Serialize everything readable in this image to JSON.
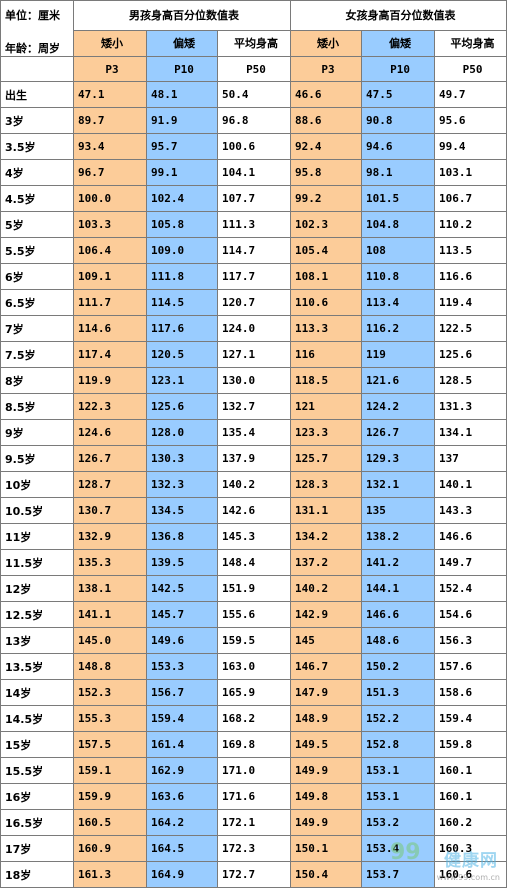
{
  "header": {
    "unit_label": "单位：厘米",
    "age_label": "年龄：周岁",
    "boys_title": "男孩身高百分位数值表",
    "girls_title": "女孩身高百分位数值表",
    "cols": [
      "矮小",
      "偏矮",
      "平均身高"
    ],
    "pcts": [
      "P3",
      "P10",
      "P50"
    ]
  },
  "rows": [
    {
      "age": "出生",
      "b": [
        "47.1",
        "48.1",
        "50.4"
      ],
      "g": [
        "46.6",
        "47.5",
        "49.7"
      ]
    },
    {
      "age": "3岁",
      "b": [
        "89.7",
        "91.9",
        "96.8"
      ],
      "g": [
        "88.6",
        "90.8",
        "95.6"
      ]
    },
    {
      "age": "3.5岁",
      "b": [
        "93.4",
        "95.7",
        "100.6"
      ],
      "g": [
        "92.4",
        "94.6",
        "99.4"
      ]
    },
    {
      "age": "4岁",
      "b": [
        "96.7",
        "99.1",
        "104.1"
      ],
      "g": [
        "95.8",
        "98.1",
        "103.1"
      ]
    },
    {
      "age": "4.5岁",
      "b": [
        "100.0",
        "102.4",
        "107.7"
      ],
      "g": [
        "99.2",
        "101.5",
        "106.7"
      ]
    },
    {
      "age": "5岁",
      "b": [
        "103.3",
        "105.8",
        "111.3"
      ],
      "g": [
        "102.3",
        "104.8",
        "110.2"
      ]
    },
    {
      "age": "5.5岁",
      "b": [
        "106.4",
        "109.0",
        "114.7"
      ],
      "g": [
        "105.4",
        "108",
        "113.5"
      ]
    },
    {
      "age": "6岁",
      "b": [
        "109.1",
        "111.8",
        "117.7"
      ],
      "g": [
        "108.1",
        "110.8",
        "116.6"
      ]
    },
    {
      "age": "6.5岁",
      "b": [
        "111.7",
        "114.5",
        "120.7"
      ],
      "g": [
        "110.6",
        "113.4",
        "119.4"
      ]
    },
    {
      "age": "7岁",
      "b": [
        "114.6",
        "117.6",
        "124.0"
      ],
      "g": [
        "113.3",
        "116.2",
        "122.5"
      ]
    },
    {
      "age": "7.5岁",
      "b": [
        "117.4",
        "120.5",
        "127.1"
      ],
      "g": [
        "116",
        "119",
        "125.6"
      ]
    },
    {
      "age": "8岁",
      "b": [
        "119.9",
        "123.1",
        "130.0"
      ],
      "g": [
        "118.5",
        "121.6",
        "128.5"
      ]
    },
    {
      "age": "8.5岁",
      "b": [
        "122.3",
        "125.6",
        "132.7"
      ],
      "g": [
        "121",
        "124.2",
        "131.3"
      ]
    },
    {
      "age": "9岁",
      "b": [
        "124.6",
        "128.0",
        "135.4"
      ],
      "g": [
        "123.3",
        "126.7",
        "134.1"
      ]
    },
    {
      "age": "9.5岁",
      "b": [
        "126.7",
        "130.3",
        "137.9"
      ],
      "g": [
        "125.7",
        "129.3",
        "137"
      ]
    },
    {
      "age": "10岁",
      "b": [
        "128.7",
        "132.3",
        "140.2"
      ],
      "g": [
        "128.3",
        "132.1",
        "140.1"
      ]
    },
    {
      "age": "10.5岁",
      "b": [
        "130.7",
        "134.5",
        "142.6"
      ],
      "g": [
        "131.1",
        "135",
        "143.3"
      ]
    },
    {
      "age": "11岁",
      "b": [
        "132.9",
        "136.8",
        "145.3"
      ],
      "g": [
        "134.2",
        "138.2",
        "146.6"
      ]
    },
    {
      "age": "11.5岁",
      "b": [
        "135.3",
        "139.5",
        "148.4"
      ],
      "g": [
        "137.2",
        "141.2",
        "149.7"
      ]
    },
    {
      "age": "12岁",
      "b": [
        "138.1",
        "142.5",
        "151.9"
      ],
      "g": [
        "140.2",
        "144.1",
        "152.4"
      ]
    },
    {
      "age": "12.5岁",
      "b": [
        "141.1",
        "145.7",
        "155.6"
      ],
      "g": [
        "142.9",
        "146.6",
        "154.6"
      ]
    },
    {
      "age": "13岁",
      "b": [
        "145.0",
        "149.6",
        "159.5"
      ],
      "g": [
        "145",
        "148.6",
        "156.3"
      ]
    },
    {
      "age": "13.5岁",
      "b": [
        "148.8",
        "153.3",
        "163.0"
      ],
      "g": [
        "146.7",
        "150.2",
        "157.6"
      ]
    },
    {
      "age": "14岁",
      "b": [
        "152.3",
        "156.7",
        "165.9"
      ],
      "g": [
        "147.9",
        "151.3",
        "158.6"
      ]
    },
    {
      "age": "14.5岁",
      "b": [
        "155.3",
        "159.4",
        "168.2"
      ],
      "g": [
        "148.9",
        "152.2",
        "159.4"
      ]
    },
    {
      "age": "15岁",
      "b": [
        "157.5",
        "161.4",
        "169.8"
      ],
      "g": [
        "149.5",
        "152.8",
        "159.8"
      ]
    },
    {
      "age": "15.5岁",
      "b": [
        "159.1",
        "162.9",
        "171.0"
      ],
      "g": [
        "149.9",
        "153.1",
        "160.1"
      ]
    },
    {
      "age": "16岁",
      "b": [
        "159.9",
        "163.6",
        "171.6"
      ],
      "g": [
        "149.8",
        "153.1",
        "160.1"
      ]
    },
    {
      "age": "16.5岁",
      "b": [
        "160.5",
        "164.2",
        "172.1"
      ],
      "g": [
        "149.9",
        "153.2",
        "160.2"
      ]
    },
    {
      "age": "17岁",
      "b": [
        "160.9",
        "164.5",
        "172.3"
      ],
      "g": [
        "150.1",
        "153.4",
        "160.3"
      ]
    },
    {
      "age": "18岁",
      "b": [
        "161.3",
        "164.9",
        "172.7"
      ],
      "g": [
        "150.4",
        "153.7",
        "160.6"
      ]
    }
  ],
  "colors": {
    "short": "#fccc99",
    "below": "#99ccff",
    "avg": "#ffffff",
    "border": "#7a7a7a"
  },
  "watermark": {
    "text": "健康网",
    "logo": "99",
    "url": "www.99.com.cn"
  }
}
